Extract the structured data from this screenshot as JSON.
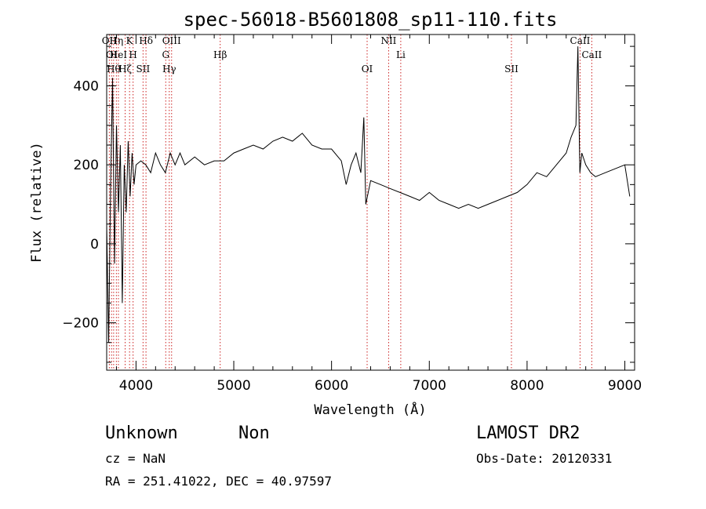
{
  "chart_data": {
    "type": "line",
    "title": "spec-56018-B5601808_sp11-110.fits",
    "xlabel": "Wavelength (Å)",
    "ylabel": "Flux (relative)",
    "xlim": [
      3700,
      9100
    ],
    "ylim": [
      -320,
      530
    ],
    "xticks": [
      4000,
      5000,
      6000,
      7000,
      8000,
      9000
    ],
    "yticks": [
      -200,
      0,
      200,
      400
    ],
    "series": [
      {
        "x": [
          3700,
          3720,
          3740,
          3760,
          3780,
          3800,
          3820,
          3840,
          3860,
          3880,
          3900,
          3920,
          3940,
          3960,
          3980,
          4000,
          4050,
          4100,
          4150,
          4200,
          4250,
          4300,
          4350,
          4400,
          4450,
          4500,
          4600,
          4700,
          4800,
          4900,
          5000,
          5100,
          5200,
          5300,
          5400,
          5500,
          5600,
          5700,
          5800,
          5900,
          6000,
          6100,
          6150,
          6200,
          6250,
          6300,
          6330,
          6350,
          6400,
          6500,
          6600,
          6700,
          6800,
          6900,
          7000,
          7100,
          7200,
          7300,
          7400,
          7500,
          7600,
          7700,
          7800,
          7900,
          8000,
          8100,
          8200,
          8300,
          8400,
          8450,
          8500,
          8520,
          8540,
          8560,
          8600,
          8650,
          8700,
          8800,
          8900,
          9000,
          9050
        ],
        "y": [
          50,
          -250,
          150,
          420,
          -50,
          300,
          80,
          250,
          -150,
          200,
          80,
          260,
          120,
          230,
          150,
          200,
          210,
          200,
          180,
          230,
          200,
          180,
          230,
          200,
          230,
          200,
          220,
          200,
          210,
          210,
          230,
          240,
          250,
          240,
          260,
          270,
          260,
          280,
          250,
          240,
          240,
          210,
          150,
          200,
          230,
          180,
          320,
          100,
          160,
          150,
          140,
          130,
          120,
          110,
          130,
          110,
          100,
          90,
          100,
          90,
          100,
          110,
          120,
          130,
          150,
          180,
          170,
          200,
          230,
          270,
          300,
          500,
          180,
          230,
          200,
          180,
          170,
          180,
          190,
          200,
          120
        ]
      }
    ],
    "lines": [
      {
        "x": 3727,
        "label": "OII"
      },
      {
        "x": 3750,
        "label": "OI"
      },
      {
        "x": 3771,
        "label": "Hθ"
      },
      {
        "x": 3799,
        "label": "Hη"
      },
      {
        "x": 3820,
        "label": "HeI"
      },
      {
        "x": 3889,
        "label": "Hζ"
      },
      {
        "x": 3934,
        "label": "K"
      },
      {
        "x": 3970,
        "label": "H"
      },
      {
        "x": 4072,
        "label": "SII"
      },
      {
        "x": 4102,
        "label": "Hδ"
      },
      {
        "x": 4304,
        "label": "G"
      },
      {
        "x": 4340,
        "label": "Hγ"
      },
      {
        "x": 4364,
        "label": "OIII"
      },
      {
        "x": 4861,
        "label": "Hβ"
      },
      {
        "x": 6364,
        "label": "OI"
      },
      {
        "x": 6584,
        "label": "NII"
      },
      {
        "x": 6708,
        "label": "Li"
      },
      {
        "x": 7840,
        "label": "SII"
      },
      {
        "x": 8542,
        "label": "CaII"
      },
      {
        "x": 8662,
        "label": "CaII"
      }
    ],
    "grid": false,
    "line_color": "#000000",
    "marker_color": "#cc2222"
  },
  "footer": {
    "class_label": "Unknown",
    "subclass_label": "Non",
    "survey": "LAMOST DR2",
    "cz": "cz = NaN",
    "obs_date": "Obs-Date: 20120331",
    "coords": "RA = 251.41022, DEC =  40.97597"
  }
}
